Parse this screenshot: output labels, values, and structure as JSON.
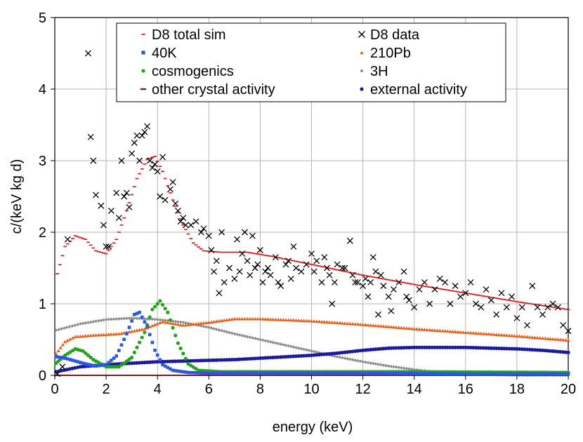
{
  "chart_data": {
    "type": "scatter",
    "title": "",
    "xlabel": "energy (keV)",
    "ylabel": "c/(keV kg d)",
    "xlim": [
      0,
      20
    ],
    "ylim": [
      0,
      5
    ],
    "xticks": [
      0,
      2,
      4,
      6,
      8,
      10,
      12,
      14,
      16,
      18,
      20
    ],
    "yticks": [
      0,
      1,
      2,
      3,
      4,
      5
    ],
    "grid": true,
    "legend_position": "top",
    "legend": [
      {
        "label": "D8 total sim",
        "series": "total_sim"
      },
      {
        "label": "D8 data",
        "series": "data"
      },
      {
        "label": "40K",
        "series": "k40"
      },
      {
        "label": "210Pb",
        "series": "pb210"
      },
      {
        "label": "cosmogenics",
        "series": "cosmo"
      },
      {
        "label": "3H",
        "series": "h3"
      },
      {
        "label": "other crystal activity",
        "series": "other"
      },
      {
        "label": "external activity",
        "series": "external"
      }
    ],
    "series": [
      {
        "id": "total_sim",
        "name": "D8 total sim",
        "marker": "dash",
        "color": "#e8161b",
        "points": [
          [
            0.1,
            1.42
          ],
          [
            0.4,
            1.8
          ],
          [
            0.8,
            1.95
          ],
          [
            1.2,
            1.9
          ],
          [
            1.6,
            1.74
          ],
          [
            2.0,
            1.7
          ],
          [
            2.4,
            1.9
          ],
          [
            2.8,
            2.3
          ],
          [
            3.2,
            2.75
          ],
          [
            3.6,
            3.02
          ],
          [
            3.9,
            3.06
          ],
          [
            4.2,
            2.85
          ],
          [
            4.6,
            2.45
          ],
          [
            5.0,
            2.1
          ],
          [
            5.4,
            1.85
          ],
          [
            5.8,
            1.74
          ],
          [
            6.5,
            1.72
          ],
          [
            7.5,
            1.72
          ],
          [
            8.5,
            1.66
          ],
          [
            10,
            1.55
          ],
          [
            12,
            1.4
          ],
          [
            14,
            1.27
          ],
          [
            16,
            1.15
          ],
          [
            18,
            1.03
          ],
          [
            20,
            0.92
          ]
        ]
      },
      {
        "id": "k40",
        "name": "40K",
        "marker": "square",
        "color": "#2957e6",
        "points": [
          [
            0.05,
            0.26
          ],
          [
            0.4,
            0.24
          ],
          [
            0.8,
            0.2
          ],
          [
            1.2,
            0.16
          ],
          [
            1.6,
            0.13
          ],
          [
            2.0,
            0.15
          ],
          [
            2.4,
            0.27
          ],
          [
            2.8,
            0.58
          ],
          [
            3.1,
            0.85
          ],
          [
            3.3,
            0.88
          ],
          [
            3.6,
            0.68
          ],
          [
            3.9,
            0.35
          ],
          [
            4.2,
            0.15
          ],
          [
            4.6,
            0.07
          ],
          [
            5.2,
            0.04
          ],
          [
            6,
            0.03
          ],
          [
            8,
            0.03
          ],
          [
            12,
            0.03
          ],
          [
            16,
            0.02
          ],
          [
            20,
            0.02
          ]
        ]
      },
      {
        "id": "cosmo",
        "name": "cosmogenics",
        "marker": "circle",
        "color": "#23a418",
        "points": [
          [
            0.05,
            0.17
          ],
          [
            0.4,
            0.28
          ],
          [
            0.8,
            0.37
          ],
          [
            1.1,
            0.34
          ],
          [
            1.5,
            0.22
          ],
          [
            2.0,
            0.12
          ],
          [
            2.5,
            0.12
          ],
          [
            3.0,
            0.25
          ],
          [
            3.5,
            0.6
          ],
          [
            3.8,
            0.92
          ],
          [
            4.1,
            1.04
          ],
          [
            4.4,
            0.88
          ],
          [
            4.8,
            0.45
          ],
          [
            5.2,
            0.16
          ],
          [
            5.6,
            0.07
          ],
          [
            6.5,
            0.05
          ],
          [
            10,
            0.05
          ],
          [
            14,
            0.05
          ],
          [
            20,
            0.04
          ]
        ]
      },
      {
        "id": "other",
        "name": "other crystal activity",
        "marker": "line",
        "color": "#8b1418",
        "points": [
          [
            0,
            0.0
          ],
          [
            10,
            0.0
          ],
          [
            20,
            0.0
          ]
        ]
      },
      {
        "id": "pb210",
        "name": "210Pb",
        "marker": "triangle",
        "color": "#f05a14",
        "points": [
          [
            0.05,
            0.3
          ],
          [
            0.4,
            0.47
          ],
          [
            0.8,
            0.54
          ],
          [
            1.5,
            0.56
          ],
          [
            2.5,
            0.58
          ],
          [
            3.5,
            0.65
          ],
          [
            4.2,
            0.75
          ],
          [
            5.0,
            0.7
          ],
          [
            6.0,
            0.74
          ],
          [
            7.0,
            0.79
          ],
          [
            8.0,
            0.79
          ],
          [
            10,
            0.76
          ],
          [
            12,
            0.71
          ],
          [
            14,
            0.65
          ],
          [
            16,
            0.6
          ],
          [
            18,
            0.55
          ],
          [
            20,
            0.49
          ]
        ]
      },
      {
        "id": "h3",
        "name": "3H",
        "marker": "diamond",
        "color": "#8c8c8c",
        "points": [
          [
            0.05,
            0.63
          ],
          [
            1,
            0.72
          ],
          [
            2,
            0.78
          ],
          [
            3,
            0.8
          ],
          [
            4,
            0.78
          ],
          [
            5,
            0.74
          ],
          [
            6,
            0.67
          ],
          [
            7,
            0.58
          ],
          [
            8,
            0.5
          ],
          [
            9,
            0.42
          ],
          [
            10,
            0.34
          ],
          [
            11,
            0.26
          ],
          [
            12,
            0.19
          ],
          [
            13,
            0.13
          ],
          [
            14,
            0.08
          ],
          [
            15,
            0.04
          ],
          [
            16,
            0.02
          ],
          [
            17,
            0.01
          ],
          [
            18,
            0.0
          ],
          [
            20,
            0.0
          ]
        ]
      },
      {
        "id": "external",
        "name": "external activity",
        "marker": "dot",
        "color": "#1a1a9e",
        "points": [
          [
            0.05,
            0.05
          ],
          [
            1,
            0.12
          ],
          [
            2,
            0.15
          ],
          [
            3,
            0.17
          ],
          [
            4,
            0.19
          ],
          [
            5,
            0.2
          ],
          [
            6,
            0.21
          ],
          [
            7,
            0.22
          ],
          [
            8,
            0.24
          ],
          [
            9,
            0.26
          ],
          [
            10,
            0.28
          ],
          [
            11,
            0.31
          ],
          [
            12,
            0.35
          ],
          [
            13,
            0.38
          ],
          [
            14,
            0.39
          ],
          [
            15,
            0.39
          ],
          [
            16,
            0.39
          ],
          [
            17,
            0.38
          ],
          [
            18,
            0.37
          ],
          [
            19,
            0.35
          ],
          [
            20,
            0.32
          ]
        ]
      },
      {
        "id": "data",
        "name": "D8 data",
        "marker": "cross",
        "color": "#000000",
        "points": [
          [
            0.1,
            0.02
          ],
          [
            0.3,
            0.12
          ],
          [
            0.5,
            1.9
          ],
          [
            1.3,
            4.5
          ],
          [
            1.4,
            3.33
          ],
          [
            1.5,
            3.0
          ],
          [
            1.6,
            2.52
          ],
          [
            1.8,
            2.37
          ],
          [
            1.9,
            2.1
          ],
          [
            2.0,
            1.8
          ],
          [
            2.1,
            1.8
          ],
          [
            2.2,
            2.3
          ],
          [
            2.4,
            2.55
          ],
          [
            2.5,
            2.2
          ],
          [
            2.6,
            3.0
          ],
          [
            2.7,
            2.5
          ],
          [
            2.8,
            2.55
          ],
          [
            2.9,
            2.35
          ],
          [
            3.0,
            3.1
          ],
          [
            3.1,
            3.25
          ],
          [
            3.2,
            3.35
          ],
          [
            3.3,
            3.0
          ],
          [
            3.4,
            3.35
          ],
          [
            3.5,
            3.4
          ],
          [
            3.6,
            3.48
          ],
          [
            3.7,
            3.0
          ],
          [
            3.8,
            2.9
          ],
          [
            3.9,
            2.95
          ],
          [
            4.0,
            2.85
          ],
          [
            4.1,
            2.5
          ],
          [
            4.2,
            3.05
          ],
          [
            4.3,
            2.45
          ],
          [
            4.5,
            2.6
          ],
          [
            4.6,
            2.7
          ],
          [
            4.7,
            2.4
          ],
          [
            4.8,
            2.3
          ],
          [
            4.9,
            2.15
          ],
          [
            5.0,
            2.2
          ],
          [
            5.1,
            2.1
          ],
          [
            5.3,
            2.1
          ],
          [
            5.5,
            2.15
          ],
          [
            5.7,
            2.0
          ],
          [
            5.8,
            2.05
          ],
          [
            6.0,
            1.95
          ],
          [
            6.1,
            1.75
          ],
          [
            6.2,
            1.45
          ],
          [
            6.3,
            1.6
          ],
          [
            6.4,
            1.15
          ],
          [
            6.5,
            2.0
          ],
          [
            6.6,
            1.3
          ],
          [
            6.8,
            1.5
          ],
          [
            7.0,
            1.35
          ],
          [
            7.1,
            1.9
          ],
          [
            7.2,
            1.45
          ],
          [
            7.3,
            1.7
          ],
          [
            7.4,
            2.0
          ],
          [
            7.5,
            1.6
          ],
          [
            7.6,
            1.4
          ],
          [
            7.7,
            1.95
          ],
          [
            7.8,
            1.5
          ],
          [
            7.9,
            1.55
          ],
          [
            8.0,
            1.75
          ],
          [
            8.1,
            1.3
          ],
          [
            8.2,
            1.45
          ],
          [
            8.3,
            1.5
          ],
          [
            8.4,
            1.4
          ],
          [
            8.6,
            1.65
          ],
          [
            8.7,
            1.3
          ],
          [
            8.8,
            1.25
          ],
          [
            9.0,
            1.55
          ],
          [
            9.1,
            1.6
          ],
          [
            9.2,
            1.35
          ],
          [
            9.3,
            1.8
          ],
          [
            9.4,
            1.5
          ],
          [
            9.6,
            1.45
          ],
          [
            9.8,
            1.55
          ],
          [
            10.0,
            1.7
          ],
          [
            10.1,
            1.45
          ],
          [
            10.2,
            1.6
          ],
          [
            10.4,
            1.3
          ],
          [
            10.5,
            1.65
          ],
          [
            10.6,
            1.5
          ],
          [
            10.7,
            1.4
          ],
          [
            10.8,
            1.0
          ],
          [
            10.9,
            1.3
          ],
          [
            11.0,
            1.55
          ],
          [
            11.2,
            1.5
          ],
          [
            11.3,
            1.5
          ],
          [
            11.5,
            1.88
          ],
          [
            11.6,
            1.4
          ],
          [
            11.7,
            1.3
          ],
          [
            11.8,
            1.3
          ],
          [
            12.0,
            1.25
          ],
          [
            12.1,
            1.35
          ],
          [
            12.2,
            1.1
          ],
          [
            12.3,
            1.3
          ],
          [
            12.4,
            1.65
          ],
          [
            12.5,
            1.45
          ],
          [
            12.6,
            0.85
          ],
          [
            12.7,
            1.4
          ],
          [
            12.8,
            1.25
          ],
          [
            13.0,
            1.1
          ],
          [
            13.1,
            0.9
          ],
          [
            13.2,
            1.2
          ],
          [
            13.4,
            1.3
          ],
          [
            13.6,
            1.45
          ],
          [
            13.7,
            1.1
          ],
          [
            13.8,
            1.05
          ],
          [
            14.0,
            0.95
          ],
          [
            14.2,
            1.2
          ],
          [
            14.4,
            1.3
          ],
          [
            14.6,
            1.0
          ],
          [
            14.8,
            1.2
          ],
          [
            15.0,
            1.35
          ],
          [
            15.2,
            1.3
          ],
          [
            15.4,
            1.0
          ],
          [
            15.6,
            1.25
          ],
          [
            15.8,
            1.1
          ],
          [
            16.0,
            1.15
          ],
          [
            16.2,
            1.3
          ],
          [
            16.4,
            1.0
          ],
          [
            16.6,
            0.95
          ],
          [
            16.8,
            1.2
          ],
          [
            17.0,
            1.05
          ],
          [
            17.2,
            0.85
          ],
          [
            17.4,
            1.15
          ],
          [
            17.6,
            0.95
          ],
          [
            17.8,
            1.1
          ],
          [
            18.0,
            0.8
          ],
          [
            18.2,
            0.95
          ],
          [
            18.4,
            0.7
          ],
          [
            18.6,
            1.25
          ],
          [
            18.8,
            0.95
          ],
          [
            19.0,
            0.85
          ],
          [
            19.2,
            0.95
          ],
          [
            19.4,
            1.0
          ],
          [
            19.6,
            0.95
          ],
          [
            19.8,
            0.7
          ],
          [
            20.0,
            0.62
          ]
        ]
      }
    ]
  }
}
